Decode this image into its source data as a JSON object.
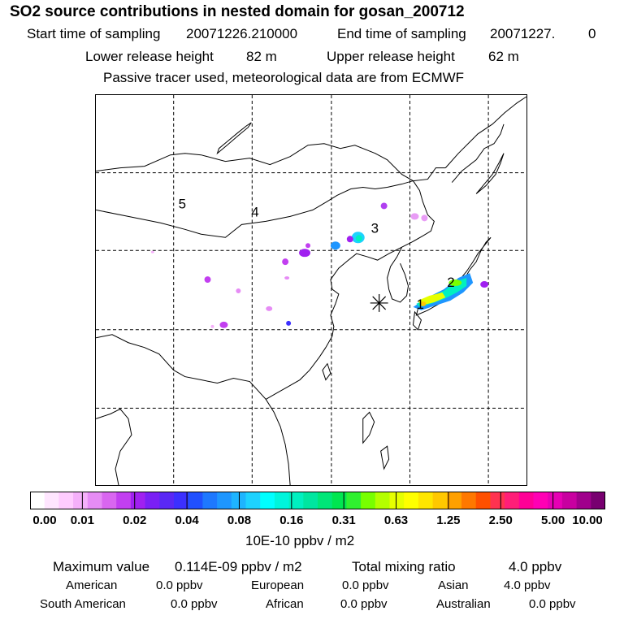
{
  "title": "SO2 source contributions in nested domain for gosan_200712",
  "sampling": {
    "start_label": "Start time of sampling",
    "start_value": "20071226.210000",
    "end_label": "End time of sampling",
    "end_value": "20071227.",
    "end_extra": "0"
  },
  "release": {
    "lower_label": "Lower release height",
    "lower_value": "82 m",
    "upper_label": "Upper release height",
    "upper_value": "62 m"
  },
  "note": "Passive tracer used, meteorological data are from ECMWF",
  "map": {
    "region_labels": [
      "5",
      "4",
      "3",
      "2",
      "1"
    ],
    "receptor_marker": "asterisk",
    "colors": {
      "land_outline": "#000000",
      "grid": "#000000"
    }
  },
  "colorbar": {
    "tick_labels": [
      "0.00",
      "0.01",
      "0.02",
      "0.04",
      "0.08",
      "0.16",
      "0.31",
      "0.63",
      "1.25",
      "2.50",
      "5.00",
      "10.00"
    ],
    "colors": [
      "#ffffff",
      "#ffe6ff",
      "#ffccff",
      "#f5b0fa",
      "#e68cf5",
      "#d966f0",
      "#c23ff0",
      "#a020f0",
      "#7a20f5",
      "#5a28f5",
      "#3c30ff",
      "#2050ff",
      "#1e78ff",
      "#1e96ff",
      "#1eb4ff",
      "#1ed2ff",
      "#00ffff",
      "#00f5dc",
      "#00f0c0",
      "#00e6a0",
      "#00e678",
      "#00e650",
      "#30f030",
      "#78ff00",
      "#b4ff00",
      "#e6ff00",
      "#ffff00",
      "#ffe600",
      "#ffc800",
      "#ffa000",
      "#ff7800",
      "#ff5000",
      "#ff3250",
      "#ff1e78",
      "#ff0096",
      "#ff00b4",
      "#e600b4",
      "#c800a0",
      "#a0008c",
      "#780070"
    ],
    "unit": "10E-10 ppbv / m2"
  },
  "summary": {
    "max_label": "Maximum value",
    "max_value": "0.114E-09 ppbv / m2",
    "total_label": "Total mixing ratio",
    "total_value": "4.0 ppbv",
    "regions": [
      {
        "name": "American",
        "value": "0.0 ppbv"
      },
      {
        "name": "European",
        "value": "0.0 ppbv"
      },
      {
        "name": "Asian",
        "value": "4.0 ppbv"
      },
      {
        "name": "South American",
        "value": "0.0 ppbv"
      },
      {
        "name": "African",
        "value": "0.0 ppbv"
      },
      {
        "name": "Australian",
        "value": "0.0 ppbv"
      }
    ]
  }
}
